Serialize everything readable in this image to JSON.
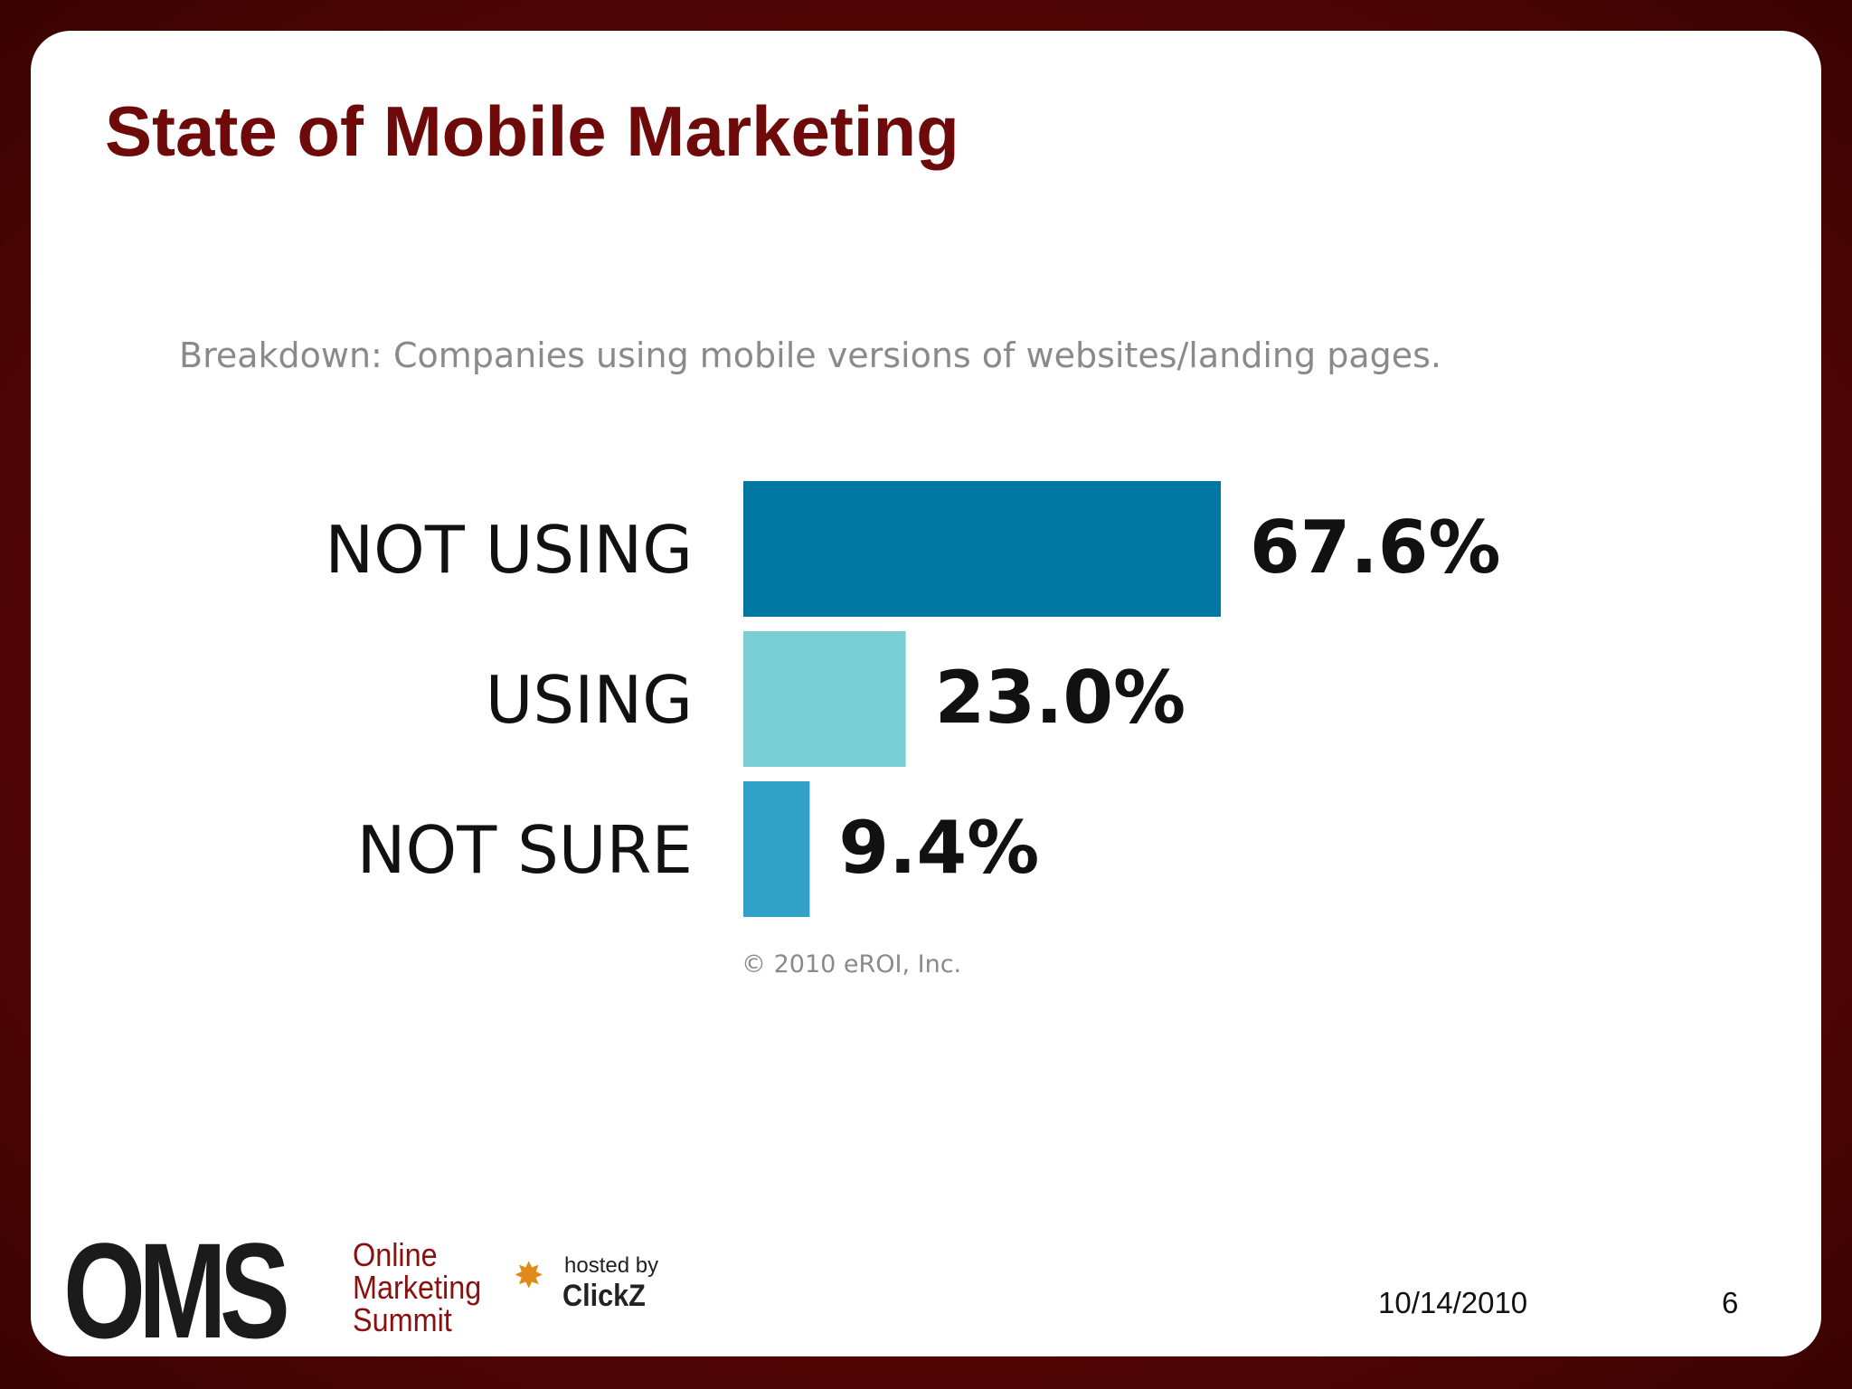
{
  "slide": {
    "title": "State of Mobile Marketing",
    "date": "10/14/2010",
    "page_number": "6"
  },
  "logo": {
    "oms": "OMS",
    "words": [
      "Online",
      "Marketing",
      "Summit"
    ],
    "hosted_by": "hosted by",
    "host_name": "ClickZ"
  },
  "chart_data": {
    "type": "bar",
    "orientation": "horizontal",
    "title": "Breakdown: Companies using mobile versions of websites/landing pages.",
    "categories": [
      "NOT USING",
      "USING",
      "NOT SURE"
    ],
    "values": [
      67.6,
      23.0,
      9.4
    ],
    "value_labels": [
      "67.6%",
      "23.0%",
      "9.4%"
    ],
    "colors": [
      "#0077a3",
      "#7acfd4",
      "#31a1c7"
    ],
    "xlim": [
      0,
      67.6
    ],
    "grid": false,
    "legend": "none",
    "source": "© 2010 eROI, Inc."
  }
}
